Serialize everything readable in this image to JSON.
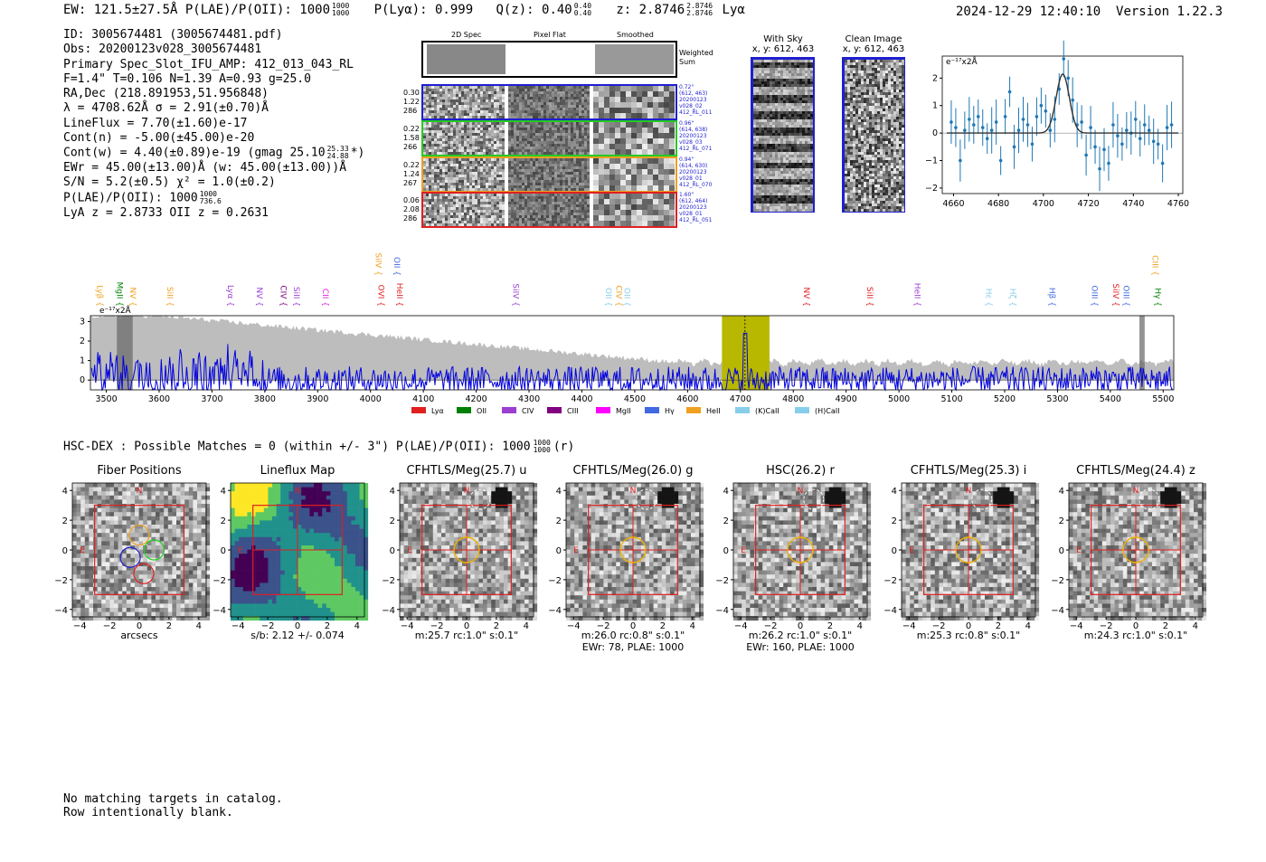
{
  "header": {
    "left": "EW: 121.5±27.5Å  P(LAE)/P(OII): 1000",
    "left_sup": "1000",
    "left_sub": "1000",
    "plya": "P(Lyα): 0.999",
    "qz": "Q(z): 0.40",
    "qz_sup": "0.40",
    "qz_sub": "0.40",
    "z": "z: 2.8746",
    "z_sup": "2.8746",
    "z_sub": "2.8746",
    "z_line": "Lyα",
    "timestamp": "2024-12-29 12:40:10",
    "version": "Version 1.22.3"
  },
  "info": {
    "id": "ID: 3005674481 (3005674481.pdf)",
    "obs": "Obs: 20200123v028_3005674481",
    "primary": "Primary Spec_Slot_IFU_AMP: 412_013_043_RL",
    "fparams": "F=1.4\"  T=0.106  N=1.39  A=0.93  g=25.0",
    "radec": "RA,Dec (218.891953,51.956848)",
    "lambda": "λ = 4708.62Å   σ = 2.91(±0.70)Å",
    "lineflux": "LineFlux = 7.70(±1.60)e-17",
    "contn": "Cont(n) = -5.00(±45.00)e-20",
    "contw": "Cont(w) = 4.40(±0.89)e-19 (gmag 25.10",
    "contw_sup": "25.33",
    "contw_sub": "24.88",
    "contw_end": "*)",
    "ewr": "EWr = 45.00(±13.00)Å (w: 45.00(±13.00))Å",
    "sn": "S/N = 5.2(±0.5)  χ² = 1.0(±0.2)",
    "plae": "P(LAE)/P(OII): 1000",
    "plae_sup": "1000",
    "plae_sub": "736.6",
    "lyaz": "LyA z = 2.8733  OII z = 0.2631"
  },
  "cutouts": {
    "col_headers": [
      "2D Spec",
      "Pixel Flat",
      "Smoothed"
    ],
    "weighted_sum": [
      "Weighted",
      "Sum"
    ],
    "rows": [
      {
        "left": [
          "0.30",
          "1.22",
          "286"
        ],
        "right": [
          "0.72\"",
          "(612, 463)",
          "20200123",
          "v028_02",
          "412_RL_011"
        ],
        "color": "#1f1fd0"
      },
      {
        "left": [
          "0.22",
          "1.58",
          "266"
        ],
        "right": [
          "0.96\"",
          "(614, 638)",
          "20200123",
          "v028_03",
          "412_RL_071"
        ],
        "color": "#22cc22"
      },
      {
        "left": [
          "0.22",
          "1.24",
          "267"
        ],
        "right": [
          "0.94\"",
          "(614, 630)",
          "20200123",
          "v028_01",
          "412_RL_070"
        ],
        "color": "#f0a020"
      },
      {
        "left": [
          "0.06",
          "2.08",
          "286"
        ],
        "right": [
          "1.60\"",
          "(612, 464)",
          "20200123",
          "v028_01",
          "412_RL_051"
        ],
        "color": "#e02020"
      }
    ],
    "with_sky_title": "With Sky",
    "with_sky_xy": "x, y: 612, 463",
    "clean_title": "Clean Image",
    "clean_xy": "x, y: 612, 463"
  },
  "zoom_chart": {
    "ylabel": "e⁻¹⁷x2Å",
    "xticks": [
      "4660",
      "4680",
      "4700",
      "4720",
      "4740",
      "4760"
    ],
    "yticks": [
      "-2",
      "-1",
      "0",
      "1",
      "2"
    ]
  },
  "chart_data": [
    {
      "type": "scatter",
      "title": "",
      "xlabel": "",
      "ylabel": "e-17 x2Å",
      "xlim": [
        4655,
        4762
      ],
      "ylim": [
        -2.2,
        2.8
      ],
      "x": [
        4659,
        4661,
        4663,
        4665,
        4667,
        4669,
        4671,
        4673,
        4675,
        4677,
        4679,
        4681,
        4683,
        4685,
        4687,
        4689,
        4691,
        4693,
        4695,
        4697,
        4699,
        4701,
        4703,
        4705,
        4707,
        4709,
        4711,
        4713,
        4715,
        4717,
        4719,
        4721,
        4723,
        4725,
        4727,
        4729,
        4731,
        4733,
        4735,
        4737,
        4739,
        4741,
        4743,
        4745,
        4747,
        4749,
        4751,
        4753,
        4755,
        4757
      ],
      "y": [
        0.4,
        0.2,
        -1.0,
        0.1,
        0.5,
        0.3,
        0.6,
        0.2,
        -0.2,
        0.1,
        0.4,
        -1.0,
        0.6,
        1.5,
        -0.5,
        0.1,
        0.5,
        0.3,
        -0.4,
        0.6,
        1.0,
        0.8,
        0.1,
        0.5,
        1.6,
        2.7,
        2.0,
        1.2,
        0.3,
        0.4,
        -0.8,
        0.2,
        -0.5,
        -1.3,
        -0.6,
        -1.1,
        0.3,
        -0.1,
        -0.4,
        0.1,
        0.0,
        0.5,
        -0.2,
        0.3,
        0.1,
        -0.3,
        -0.4,
        -1.1,
        0.2,
        0.3
      ],
      "fit": {
        "center": 4708.6,
        "sigma": 2.91,
        "amplitude": 2.15
      }
    },
    {
      "type": "line",
      "title": "",
      "xlabel": "",
      "ylabel": "e-17 x2Å",
      "xlim": [
        3470,
        5520
      ],
      "ylim": [
        -0.5,
        3.3
      ],
      "xticks": [
        3500,
        3600,
        3700,
        3800,
        3900,
        4000,
        4100,
        4200,
        4300,
        4400,
        4500,
        4600,
        4700,
        4800,
        4900,
        5000,
        5100,
        5200,
        5300,
        5400,
        5500
      ],
      "yticks": [
        0,
        1,
        2,
        3
      ],
      "highlight_range": [
        4665,
        4755
      ],
      "line_center": 4708.6,
      "line_labels": [
        {
          "x": 3470,
          "name": "Lyβ",
          "color": "#f0a020"
        },
        {
          "x": 3515,
          "name": "MgII",
          "color": "#008000"
        },
        {
          "x": 3540,
          "name": "NV",
          "color": "#f0a020"
        },
        {
          "x": 3610,
          "name": "SiII",
          "color": "#f0a020"
        },
        {
          "x": 3725,
          "name": "Lyα",
          "color": "#9a3fd0"
        },
        {
          "x": 3780,
          "name": "NV",
          "color": "#9a3fd0"
        },
        {
          "x": 3825,
          "name": "CIV",
          "color": "#800080"
        },
        {
          "x": 3850,
          "name": "SiII",
          "color": "#9a3fd0"
        },
        {
          "x": 3905,
          "name": "CII",
          "color": "#e020e0"
        },
        {
          "x": 4010,
          "name": "OVI",
          "color": "#e02020"
        },
        {
          "x": 4045,
          "name": "HeII",
          "color": "#e02020"
        },
        {
          "x": 4265,
          "name": "SiIV",
          "color": "#9a3fd0"
        },
        {
          "x": 4440,
          "name": "OII",
          "color": "#87ceeb"
        },
        {
          "x": 4460,
          "name": "CIV",
          "color": "#f0a020"
        },
        {
          "x": 4475,
          "name": "OII",
          "color": "#87ceeb"
        },
        {
          "x": 4815,
          "name": "NV",
          "color": "#e02020"
        },
        {
          "x": 4935,
          "name": "SiII",
          "color": "#e02020"
        },
        {
          "x": 5025,
          "name": "HeII",
          "color": "#9a3fd0"
        },
        {
          "x": 5160,
          "name": "Hε",
          "color": "#87ceeb"
        },
        {
          "x": 5205,
          "name": "Hζ",
          "color": "#87ceeb"
        },
        {
          "x": 5280,
          "name": "Hβ",
          "color": "#4169e1"
        },
        {
          "x": 5360,
          "name": "OIII",
          "color": "#4169e1"
        },
        {
          "x": 5400,
          "name": "SiIV",
          "color": "#e02020"
        },
        {
          "x": 5420,
          "name": "OIII",
          "color": "#4169e1"
        },
        {
          "x": 5480,
          "name": "Hγ",
          "color": "#008000"
        }
      ],
      "top_labels": [
        {
          "x": 4005,
          "name": "SiIV",
          "color": "#f0a020"
        },
        {
          "x": 4040,
          "name": "OII",
          "color": "#4169e1"
        },
        {
          "x": 5475,
          "name": "CIII",
          "color": "#f0a020"
        }
      ],
      "legend": [
        {
          "name": "Lyα",
          "color": "#e02020"
        },
        {
          "name": "OII",
          "color": "#008000"
        },
        {
          "name": "CIV",
          "color": "#9a3fd0"
        },
        {
          "name": "CIII",
          "color": "#800080"
        },
        {
          "name": "MgII",
          "color": "#ff00ff"
        },
        {
          "name": "Hγ",
          "color": "#4169e1"
        },
        {
          "name": "HeII",
          "color": "#f0a020"
        },
        {
          "name": "(K)CaII",
          "color": "#87ceeb"
        },
        {
          "name": "(H)CaII",
          "color": "#87ceeb"
        }
      ]
    }
  ],
  "hsc": {
    "line": "HSC-DEX : Possible Matches = 0 (within +/- 3\")  P(LAE)/P(OII): 1000",
    "line_sup": "1000",
    "line_sub": "1000",
    "line_end": "(r)"
  },
  "panels": [
    {
      "title": "Fiber Positions",
      "caption1": "arcsecs",
      "caption2": ""
    },
    {
      "title": "Lineflux Map",
      "caption1": "s/b: 2.12 +/- 0.074",
      "caption2": ""
    },
    {
      "title": "CFHTLS/Meg(25.7) u",
      "caption1": "m:25.7 rc:1.0\"  s:0.1\"",
      "caption2": ""
    },
    {
      "title": "CFHTLS/Meg(26.0) g",
      "caption1": "m:26.0 rc:0.8\"  s:0.1\"",
      "caption2": "EWr: 78, PLAE: 1000"
    },
    {
      "title": "HSC(26.2) r",
      "caption1": "m:26.2 rc:1.0\"  s:0.1\"",
      "caption2": "EWr: 160, PLAE: 1000"
    },
    {
      "title": "CFHTLS/Meg(25.3) i",
      "caption1": "m:25.3 rc:0.8\"  s:0.1\"",
      "caption2": ""
    },
    {
      "title": "CFHTLS/Meg(24.4) z",
      "caption1": "m:24.3 rc:1.0\"  s:0.1\"",
      "caption2": ""
    }
  ],
  "panel_axes": {
    "xticks": [
      "−4",
      "−2",
      "0",
      "2",
      "4"
    ],
    "yticks": [
      "4",
      "2",
      "0",
      "−2",
      "−4"
    ],
    "north": "N",
    "east": "E"
  },
  "footer": {
    "line1": "No matching targets in catalog.",
    "line2": "Row intentionally blank."
  }
}
